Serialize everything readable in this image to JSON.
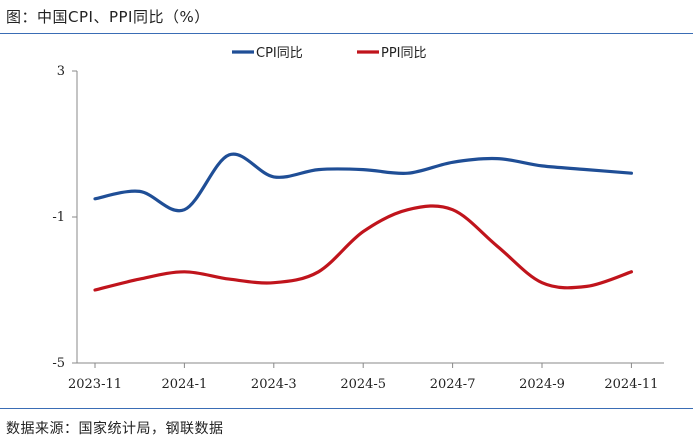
{
  "header": {
    "title": "图：中国CPI、PPI同比（%）"
  },
  "footer": {
    "source": "数据来源：国家统计局，钢联数据"
  },
  "chart_data": {
    "type": "line",
    "title": "",
    "xlabel": "",
    "ylabel": "",
    "x": [
      "2023-11",
      "2023-12",
      "2024-1",
      "2024-2",
      "2024-3",
      "2024-4",
      "2024-5",
      "2024-6",
      "2024-7",
      "2024-8",
      "2024-9",
      "2024-10",
      "2024-11"
    ],
    "xticks": [
      "2023-11",
      "2024-1",
      "2024-3",
      "2024-5",
      "2024-7",
      "2024-9",
      "2024-11"
    ],
    "ylim": [
      -5,
      3
    ],
    "yticks": [
      3,
      -1,
      -5
    ],
    "grid": false,
    "legend": "top",
    "series": [
      {
        "name": "CPI同比",
        "color": "#1f4e96",
        "values": [
          -0.5,
          -0.3,
          -0.8,
          0.7,
          0.1,
          0.3,
          0.3,
          0.2,
          0.5,
          0.6,
          0.4,
          0.3,
          0.2
        ]
      },
      {
        "name": "PPI同比",
        "color": "#c0141c",
        "values": [
          -3.0,
          -2.7,
          -2.5,
          -2.7,
          -2.8,
          -2.5,
          -1.4,
          -0.8,
          -0.8,
          -1.8,
          -2.8,
          -2.9,
          -2.5
        ]
      }
    ]
  }
}
